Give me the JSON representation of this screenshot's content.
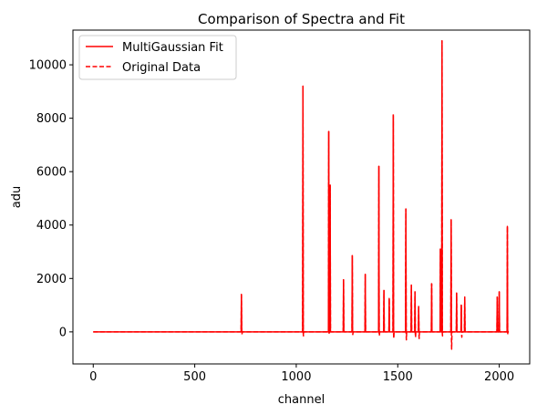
{
  "chart_data": {
    "type": "line",
    "title": "Comparison of Spectra and Fit",
    "xlabel": "channel",
    "ylabel": "adu",
    "xlim": [
      -100,
      2150
    ],
    "ylim": [
      -1200,
      11300
    ],
    "xticks": [
      0,
      500,
      1000,
      1500,
      2000
    ],
    "yticks": [
      0,
      2000,
      4000,
      6000,
      8000,
      10000
    ],
    "grid": false,
    "legend_position": "upper-left",
    "baseline_x_range": [
      0,
      2047
    ],
    "series": [
      {
        "name": "MultiGaussian Fit",
        "color": "#ff0000",
        "style": "solid",
        "peaks": [
          {
            "x": 730,
            "height": 1400
          },
          {
            "x": 1033,
            "height": 9200
          },
          {
            "x": 1160,
            "height": 7500
          },
          {
            "x": 1167,
            "height": 5500
          },
          {
            "x": 1233,
            "height": 1950
          },
          {
            "x": 1276,
            "height": 2850
          },
          {
            "x": 1340,
            "height": 2150
          },
          {
            "x": 1407,
            "height": 6200
          },
          {
            "x": 1432,
            "height": 1550
          },
          {
            "x": 1458,
            "height": 1250
          },
          {
            "x": 1478,
            "height": 8100
          },
          {
            "x": 1540,
            "height": 4600
          },
          {
            "x": 1567,
            "height": 1750
          },
          {
            "x": 1585,
            "height": 1500
          },
          {
            "x": 1603,
            "height": 950
          },
          {
            "x": 1667,
            "height": 1800
          },
          {
            "x": 1710,
            "height": 3100
          },
          {
            "x": 1718,
            "height": 10900
          },
          {
            "x": 1763,
            "height": 4200
          },
          {
            "x": 1790,
            "height": 1450
          },
          {
            "x": 1813,
            "height": 1000
          },
          {
            "x": 1830,
            "height": 1300
          },
          {
            "x": 1990,
            "height": 1300
          },
          {
            "x": 2000,
            "height": 1500
          },
          {
            "x": 2040,
            "height": 3950
          }
        ]
      },
      {
        "name": "Original Data",
        "color": "#ff0000",
        "style": "dashed",
        "peaks": [
          {
            "x": 730,
            "height": 1400
          },
          {
            "x": 1033,
            "height": 9200
          },
          {
            "x": 1160,
            "height": 7500
          },
          {
            "x": 1167,
            "height": 5500
          },
          {
            "x": 1233,
            "height": 1950
          },
          {
            "x": 1276,
            "height": 2850
          },
          {
            "x": 1340,
            "height": 2150
          },
          {
            "x": 1407,
            "height": 6200
          },
          {
            "x": 1432,
            "height": 1550
          },
          {
            "x": 1458,
            "height": 1250
          },
          {
            "x": 1478,
            "height": 8150
          },
          {
            "x": 1540,
            "height": 4600
          },
          {
            "x": 1567,
            "height": 1750
          },
          {
            "x": 1585,
            "height": 1500
          },
          {
            "x": 1603,
            "height": 950
          },
          {
            "x": 1667,
            "height": 1800
          },
          {
            "x": 1710,
            "height": 3100
          },
          {
            "x": 1718,
            "height": 10900
          },
          {
            "x": 1763,
            "height": 4200
          },
          {
            "x": 1790,
            "height": 1450
          },
          {
            "x": 1813,
            "height": 1000
          },
          {
            "x": 1830,
            "height": 1300
          },
          {
            "x": 1990,
            "height": 1300
          },
          {
            "x": 2000,
            "height": 1500
          },
          {
            "x": 2040,
            "height": 3950
          }
        ],
        "dips": [
          {
            "x": 730,
            "depth": -100
          },
          {
            "x": 1033,
            "depth": -150
          },
          {
            "x": 1160,
            "depth": -100
          },
          {
            "x": 1276,
            "depth": -100
          },
          {
            "x": 1407,
            "depth": -150
          },
          {
            "x": 1478,
            "depth": -250
          },
          {
            "x": 1540,
            "depth": -300
          },
          {
            "x": 1585,
            "depth": -200
          },
          {
            "x": 1603,
            "depth": -250
          },
          {
            "x": 1718,
            "depth": -150
          },
          {
            "x": 1763,
            "depth": -650
          },
          {
            "x": 1813,
            "depth": -200
          },
          {
            "x": 2040,
            "depth": -100
          }
        ]
      }
    ]
  }
}
